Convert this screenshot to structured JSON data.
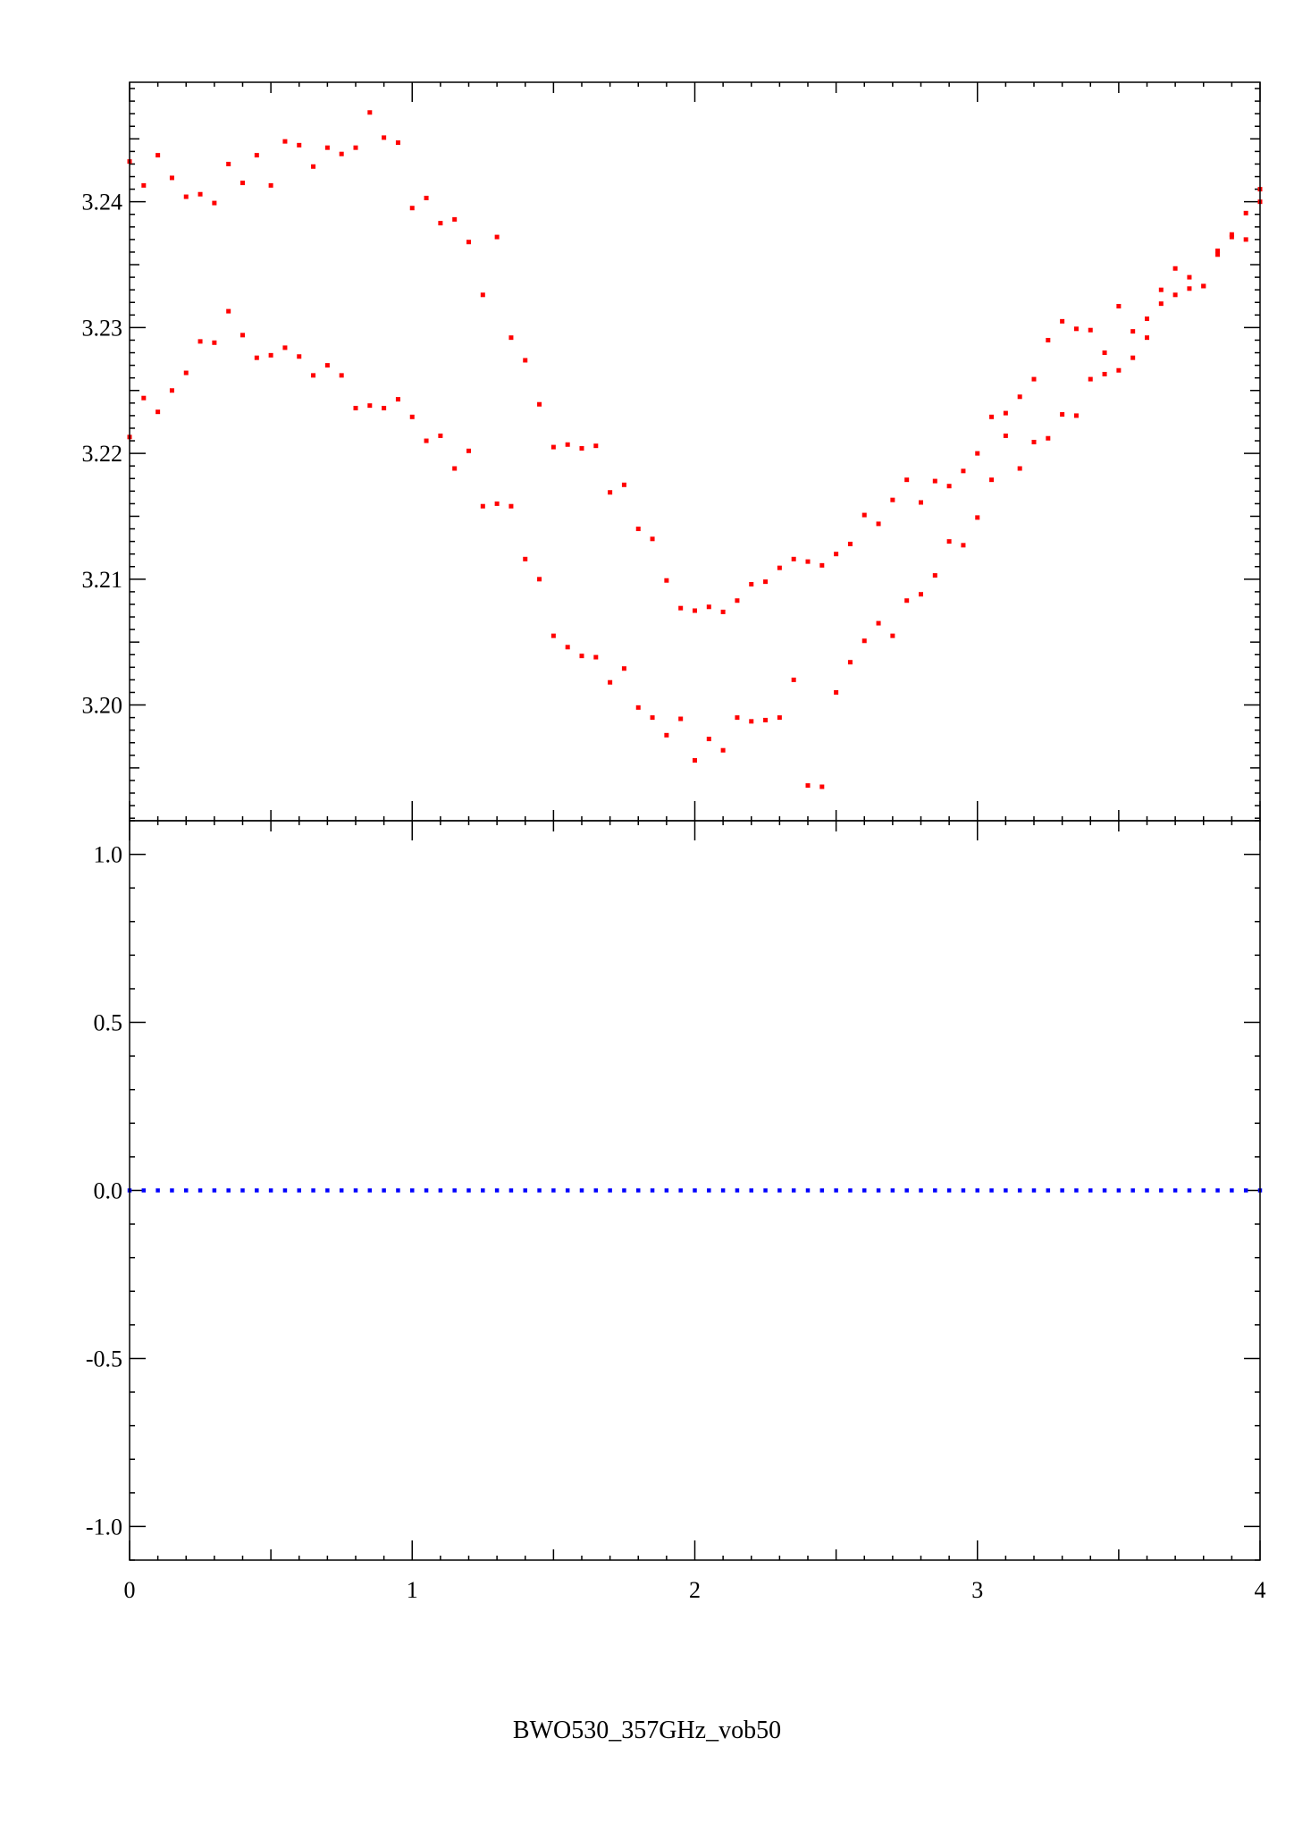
{
  "caption": "BWO530_357GHz_vob50",
  "colors": {
    "data_points": "#ff0000",
    "residuals": "#0000ff",
    "axes": "#000000"
  },
  "chart_data": [
    {
      "type": "scatter",
      "title": "",
      "xlabel": "",
      "ylabel": "",
      "xlim": [
        0,
        4
      ],
      "ylim": [
        3.1908,
        3.2495
      ],
      "x_ticks": [
        "0",
        "1",
        "2",
        "3",
        "4"
      ],
      "y_ticks": [
        "3.20",
        "3.21",
        "3.22",
        "3.23",
        "3.24"
      ],
      "grid": false,
      "series": [
        {
          "x": [
            0.0,
            0.05,
            0.1,
            0.15,
            0.2,
            0.25,
            0.3,
            0.35,
            0.4,
            0.45,
            0.5,
            0.55,
            0.6,
            0.65,
            0.7,
            0.75,
            0.8,
            0.85,
            0.9,
            0.95,
            1.0,
            1.05,
            1.1,
            1.15,
            1.2,
            1.25,
            1.3,
            1.35,
            1.4,
            1.45,
            1.5,
            1.55,
            1.6,
            1.65,
            1.7,
            1.75,
            1.8,
            1.85,
            1.9,
            1.95,
            2.0,
            2.05,
            2.1,
            2.15,
            2.2,
            2.25,
            2.3,
            2.35,
            2.4,
            2.45,
            2.5,
            2.55,
            2.6,
            2.65,
            2.7,
            2.75,
            2.8,
            2.85,
            2.9,
            2.95,
            3.0,
            3.05,
            3.1,
            3.15,
            3.2,
            3.25,
            3.3,
            3.35,
            3.4,
            3.45,
            3.5,
            3.55,
            3.6,
            3.65,
            3.7,
            3.75,
            3.8,
            3.85,
            3.9,
            3.95,
            4.0
          ],
          "y": [
            3.2432,
            3.2413,
            3.2437,
            3.2419,
            3.2404,
            3.2406,
            3.2399,
            3.243,
            3.2415,
            3.2437,
            3.2413,
            3.2448,
            3.2445,
            3.2428,
            3.2443,
            3.2438,
            3.2443,
            3.2471,
            3.2451,
            3.2447,
            3.2395,
            3.2403,
            3.2383,
            3.2386,
            3.2368,
            3.2326,
            3.2372,
            3.2292,
            3.2274,
            3.2239,
            3.2205,
            3.2207,
            3.2204,
            3.2206,
            3.2169,
            3.2175,
            3.214,
            3.2132,
            3.2099,
            3.2077,
            3.2075,
            3.2078,
            3.2074,
            3.2083,
            3.2096,
            3.2098,
            3.2109,
            3.2116,
            3.2114,
            3.2111,
            3.212,
            3.2128,
            3.2151,
            3.2144,
            3.2163,
            3.2179,
            3.2161,
            3.2178,
            3.2174,
            3.2186,
            3.22,
            3.2229,
            3.2232,
            3.2245,
            3.2259,
            3.229,
            3.2305,
            3.2299,
            3.2298,
            3.228,
            3.2317,
            3.2297,
            3.2307,
            3.233,
            3.2347,
            3.234,
            3.2333,
            3.2358,
            3.2372,
            3.2391,
            3.241
          ]
        },
        {
          "x": [
            0.0,
            0.05,
            0.1,
            0.15,
            0.2,
            0.25,
            0.3,
            0.35,
            0.4,
            0.45,
            0.5,
            0.55,
            0.6,
            0.65,
            0.7,
            0.75,
            0.8,
            0.85,
            0.9,
            0.95,
            1.0,
            1.05,
            1.1,
            1.15,
            1.2,
            1.25,
            1.3,
            1.35,
            1.4,
            1.45,
            1.5,
            1.55,
            1.6,
            1.65,
            1.7,
            1.75,
            1.8,
            1.85,
            1.9,
            1.95,
            2.0,
            2.05,
            2.1,
            2.15,
            2.2,
            2.25,
            2.3,
            2.35,
            2.4,
            2.45,
            2.5,
            2.55,
            2.6,
            2.65,
            2.7,
            2.75,
            2.8,
            2.85,
            2.9,
            2.95,
            3.0,
            3.05,
            3.1,
            3.15,
            3.2,
            3.25,
            3.3,
            3.35,
            3.4,
            3.45,
            3.5,
            3.55,
            3.6,
            3.65,
            3.7,
            3.75,
            3.8,
            3.85,
            3.9,
            3.95,
            4.0
          ],
          "y": [
            3.2213,
            3.2244,
            3.2233,
            3.225,
            3.2264,
            3.2289,
            3.2288,
            3.2313,
            3.2294,
            3.2276,
            3.2278,
            3.2284,
            3.2277,
            3.2262,
            3.227,
            3.2262,
            3.2236,
            3.2238,
            3.2236,
            3.2243,
            3.2229,
            3.221,
            3.2214,
            3.2188,
            3.2202,
            3.2158,
            3.216,
            3.2158,
            3.2116,
            3.21,
            3.2055,
            3.2046,
            3.2039,
            3.2038,
            3.2018,
            3.2029,
            3.1998,
            3.199,
            3.1976,
            3.1989,
            3.1956,
            3.1973,
            3.1964,
            3.199,
            3.1987,
            3.1988,
            3.199,
            3.202,
            3.1936,
            3.1935,
            3.201,
            3.2034,
            3.2051,
            3.2065,
            3.2055,
            3.2083,
            3.2088,
            3.2103,
            3.213,
            3.2127,
            3.2149,
            3.2179,
            3.2214,
            3.2188,
            3.2209,
            3.2212,
            3.2231,
            3.223,
            3.2259,
            3.2263,
            3.2266,
            3.2276,
            3.2292,
            3.2319,
            3.2326,
            3.2331,
            3.2333,
            3.2361,
            3.2374,
            3.237,
            3.24
          ]
        }
      ]
    },
    {
      "type": "scatter",
      "title": "",
      "xlabel": "",
      "ylabel": "",
      "xlim": [
        0,
        4
      ],
      "ylim": [
        -1.1,
        1.1
      ],
      "x_ticks": [
        "0",
        "1",
        "2",
        "3",
        "4"
      ],
      "y_ticks": [
        "-1.0",
        "-0.5",
        "0.0",
        "0.5",
        "1.0"
      ],
      "grid": false,
      "series": [
        {
          "x": [
            0.0,
            0.05,
            0.1,
            0.15,
            0.2,
            0.25,
            0.3,
            0.35,
            0.4,
            0.45,
            0.5,
            0.55,
            0.6,
            0.65,
            0.7,
            0.75,
            0.8,
            0.85,
            0.9,
            0.95,
            1.0,
            1.05,
            1.1,
            1.15,
            1.2,
            1.25,
            1.3,
            1.35,
            1.4,
            1.45,
            1.5,
            1.55,
            1.6,
            1.65,
            1.7,
            1.75,
            1.8,
            1.85,
            1.9,
            1.95,
            2.0,
            2.05,
            2.1,
            2.15,
            2.2,
            2.25,
            2.3,
            2.35,
            2.4,
            2.45,
            2.5,
            2.55,
            2.6,
            2.65,
            2.7,
            2.75,
            2.8,
            2.85,
            2.9,
            2.95,
            3.0,
            3.05,
            3.1,
            3.15,
            3.2,
            3.25,
            3.3,
            3.35,
            3.4,
            3.45,
            3.5,
            3.55,
            3.6,
            3.65,
            3.7,
            3.75,
            3.8,
            3.85,
            3.9,
            3.95,
            4.0
          ],
          "y": [
            0,
            0,
            0,
            0,
            0,
            0,
            0,
            0,
            0,
            0,
            0,
            0,
            0,
            0,
            0,
            0,
            0,
            0,
            0,
            0,
            0,
            0,
            0,
            0,
            0,
            0,
            0,
            0,
            0,
            0,
            0,
            0,
            0,
            0,
            0,
            0,
            0,
            0,
            0,
            0,
            0,
            0,
            0,
            0,
            0,
            0,
            0,
            0,
            0,
            0,
            0,
            0,
            0,
            0,
            0,
            0,
            0,
            0,
            0,
            0,
            0,
            0,
            0,
            0,
            0,
            0,
            0,
            0,
            0,
            0,
            0,
            0,
            0,
            0,
            0,
            0,
            0,
            0,
            0,
            0,
            0
          ]
        }
      ]
    }
  ]
}
